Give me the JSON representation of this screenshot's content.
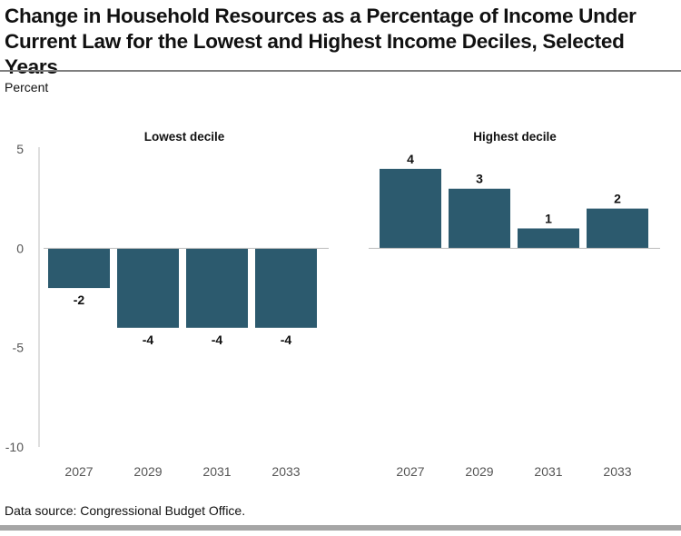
{
  "title": "Change in Household Resources as a Percentage of Income Under Current Law for the Lowest and Highest Income Deciles, Selected Years",
  "unit_label": "Percent",
  "source": "Data source: Congressional Budget Office.",
  "colors": {
    "bar": "#2c5a6e",
    "axis": "#bfbfbf",
    "text": "#111111",
    "tick_label": "#555555"
  },
  "chart_data": {
    "type": "bar",
    "ylim": [
      -10,
      5
    ],
    "yticks": [
      5,
      0,
      -5,
      -10
    ],
    "ylabel": "Percent",
    "grid": false,
    "panels": [
      {
        "title": "Lowest decile",
        "categories": [
          "2027",
          "2029",
          "2031",
          "2033"
        ],
        "values": [
          -2,
          -4,
          -4,
          -4
        ]
      },
      {
        "title": "Highest decile",
        "categories": [
          "2027",
          "2029",
          "2031",
          "2033"
        ],
        "values": [
          4,
          3,
          1,
          2
        ]
      }
    ]
  }
}
